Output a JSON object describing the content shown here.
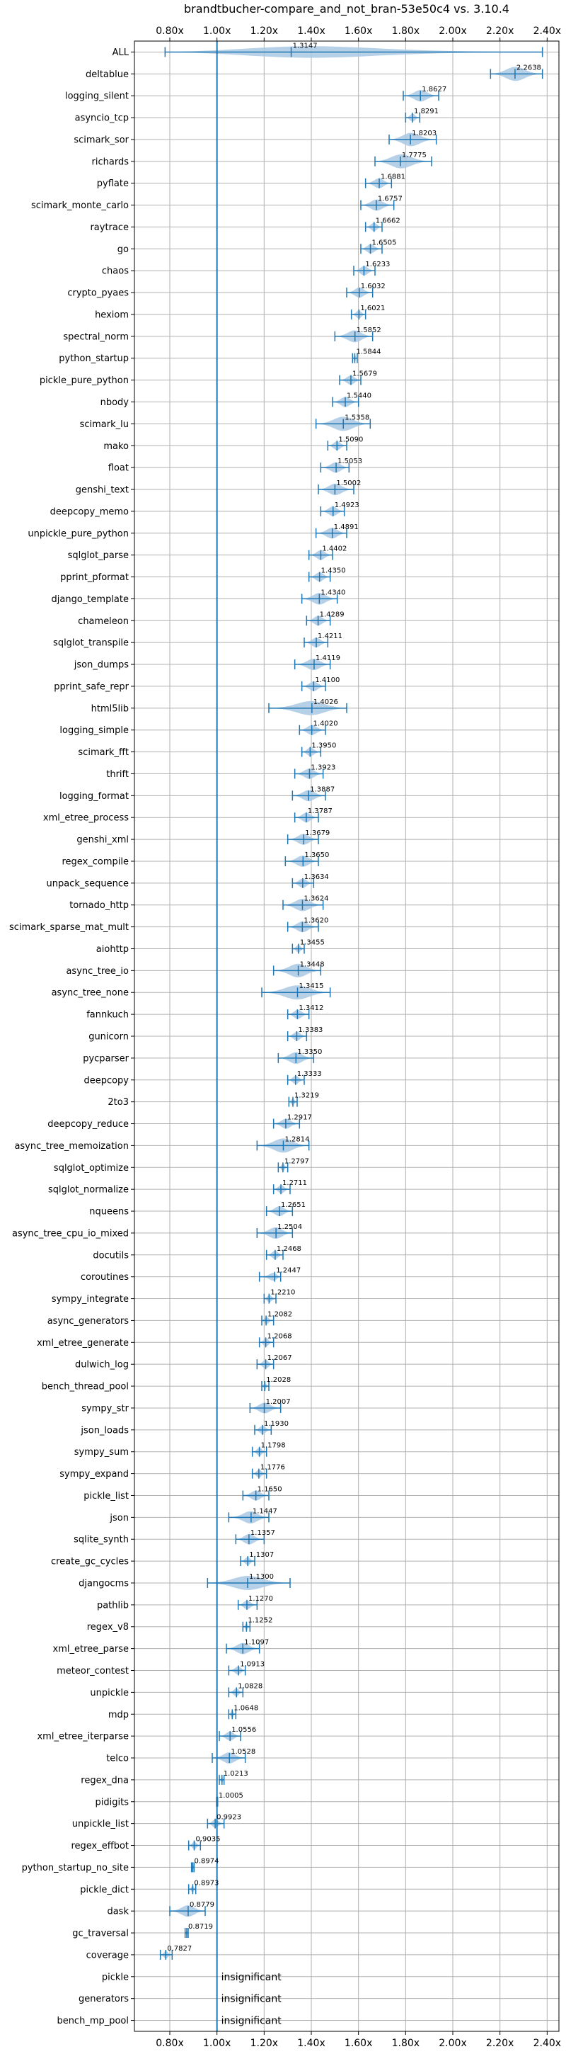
{
  "chart_data": {
    "type": "violin",
    "title": "brandtbucher-compare_and_not_bran-53e50c4 vs. 3.10.4",
    "xlabel": "",
    "ylabel": "",
    "xlim": [
      0.65,
      2.45
    ],
    "xticks": [
      0.8,
      1.0,
      1.2,
      1.4,
      1.6,
      1.8,
      2.0,
      2.2,
      2.4
    ],
    "xtick_labels": [
      "0.80x",
      "1.00x",
      "1.20x",
      "1.40x",
      "1.60x",
      "1.80x",
      "2.00x",
      "2.20x",
      "2.40x"
    ],
    "reference_line": 1.0,
    "grid": true,
    "colors": {
      "violin": "#a9c8e3",
      "line": "#1f77b4"
    },
    "insignificant_label": "insignificant",
    "benchmarks": [
      {
        "name": "ALL",
        "value": 1.3147,
        "value_label": "1.3147",
        "min": 0.78,
        "max": 2.38
      },
      {
        "name": "deltablue",
        "value": 2.2638,
        "value_label": "2.2638",
        "min": 2.16,
        "max": 2.38
      },
      {
        "name": "logging_silent",
        "value": 1.8627,
        "value_label": "1.8627",
        "min": 1.79,
        "max": 1.94
      },
      {
        "name": "asyncio_tcp",
        "value": 1.8291,
        "value_label": "1.8291",
        "min": 1.8,
        "max": 1.86
      },
      {
        "name": "scimark_sor",
        "value": 1.8203,
        "value_label": "1.8203",
        "min": 1.73,
        "max": 1.93
      },
      {
        "name": "richards",
        "value": 1.7775,
        "value_label": "1.7775",
        "min": 1.67,
        "max": 1.91
      },
      {
        "name": "pyflate",
        "value": 1.6881,
        "value_label": "1.6881",
        "min": 1.63,
        "max": 1.74
      },
      {
        "name": "scimark_monte_carlo",
        "value": 1.6757,
        "value_label": "1.6757",
        "min": 1.61,
        "max": 1.75
      },
      {
        "name": "raytrace",
        "value": 1.6662,
        "value_label": "1.6662",
        "min": 1.63,
        "max": 1.7
      },
      {
        "name": "go",
        "value": 1.6505,
        "value_label": "1.6505",
        "min": 1.61,
        "max": 1.7
      },
      {
        "name": "chaos",
        "value": 1.6233,
        "value_label": "1.6233",
        "min": 1.58,
        "max": 1.67
      },
      {
        "name": "crypto_pyaes",
        "value": 1.6032,
        "value_label": "1.6032",
        "min": 1.55,
        "max": 1.66
      },
      {
        "name": "hexiom",
        "value": 1.6021,
        "value_label": "1.6021",
        "min": 1.57,
        "max": 1.63
      },
      {
        "name": "spectral_norm",
        "value": 1.5852,
        "value_label": "1.5852",
        "min": 1.5,
        "max": 1.66
      },
      {
        "name": "python_startup",
        "value": 1.5844,
        "value_label": "1.5844",
        "min": 1.575,
        "max": 1.595
      },
      {
        "name": "pickle_pure_python",
        "value": 1.5679,
        "value_label": "1.5679",
        "min": 1.52,
        "max": 1.61
      },
      {
        "name": "nbody",
        "value": 1.544,
        "value_label": "1.5440",
        "min": 1.49,
        "max": 1.6
      },
      {
        "name": "scimark_lu",
        "value": 1.5358,
        "value_label": "1.5358",
        "min": 1.42,
        "max": 1.65
      },
      {
        "name": "mako",
        "value": 1.509,
        "value_label": "1.5090",
        "min": 1.47,
        "max": 1.55
      },
      {
        "name": "float",
        "value": 1.5053,
        "value_label": "1.5053",
        "min": 1.44,
        "max": 1.56
      },
      {
        "name": "genshi_text",
        "value": 1.5002,
        "value_label": "1.5002",
        "min": 1.43,
        "max": 1.58
      },
      {
        "name": "deepcopy_memo",
        "value": 1.4923,
        "value_label": "1.4923",
        "min": 1.44,
        "max": 1.54
      },
      {
        "name": "unpickle_pure_python",
        "value": 1.4891,
        "value_label": "1.4891",
        "min": 1.42,
        "max": 1.55
      },
      {
        "name": "sqlglot_parse",
        "value": 1.4402,
        "value_label": "1.4402",
        "min": 1.39,
        "max": 1.49
      },
      {
        "name": "pprint_pformat",
        "value": 1.435,
        "value_label": "1.4350",
        "min": 1.39,
        "max": 1.48
      },
      {
        "name": "django_template",
        "value": 1.434,
        "value_label": "1.4340",
        "min": 1.36,
        "max": 1.51
      },
      {
        "name": "chameleon",
        "value": 1.4289,
        "value_label": "1.4289",
        "min": 1.38,
        "max": 1.48
      },
      {
        "name": "sqlglot_transpile",
        "value": 1.4211,
        "value_label": "1.4211",
        "min": 1.37,
        "max": 1.47
      },
      {
        "name": "json_dumps",
        "value": 1.4119,
        "value_label": "1.4119",
        "min": 1.33,
        "max": 1.48
      },
      {
        "name": "pprint_safe_repr",
        "value": 1.41,
        "value_label": "1.4100",
        "min": 1.36,
        "max": 1.46
      },
      {
        "name": "html5lib",
        "value": 1.4026,
        "value_label": "1.4026",
        "min": 1.22,
        "max": 1.55
      },
      {
        "name": "logging_simple",
        "value": 1.402,
        "value_label": "1.4020",
        "min": 1.35,
        "max": 1.46
      },
      {
        "name": "scimark_fft",
        "value": 1.395,
        "value_label": "1.3950",
        "min": 1.36,
        "max": 1.44
      },
      {
        "name": "thrift",
        "value": 1.3923,
        "value_label": "1.3923",
        "min": 1.33,
        "max": 1.45
      },
      {
        "name": "logging_format",
        "value": 1.3887,
        "value_label": "1.3887",
        "min": 1.32,
        "max": 1.46
      },
      {
        "name": "xml_etree_process",
        "value": 1.3787,
        "value_label": "1.3787",
        "min": 1.33,
        "max": 1.43
      },
      {
        "name": "genshi_xml",
        "value": 1.3679,
        "value_label": "1.3679",
        "min": 1.3,
        "max": 1.43
      },
      {
        "name": "regex_compile",
        "value": 1.365,
        "value_label": "1.3650",
        "min": 1.29,
        "max": 1.43
      },
      {
        "name": "unpack_sequence",
        "value": 1.3634,
        "value_label": "1.3634",
        "min": 1.32,
        "max": 1.41
      },
      {
        "name": "tornado_http",
        "value": 1.3624,
        "value_label": "1.3624",
        "min": 1.28,
        "max": 1.45
      },
      {
        "name": "scimark_sparse_mat_mult",
        "value": 1.362,
        "value_label": "1.3620",
        "min": 1.3,
        "max": 1.43
      },
      {
        "name": "aiohttp",
        "value": 1.3455,
        "value_label": "1.3455",
        "min": 1.32,
        "max": 1.37
      },
      {
        "name": "async_tree_io",
        "value": 1.3448,
        "value_label": "1.3448",
        "min": 1.24,
        "max": 1.44
      },
      {
        "name": "async_tree_none",
        "value": 1.3415,
        "value_label": "1.3415",
        "min": 1.19,
        "max": 1.48
      },
      {
        "name": "fannkuch",
        "value": 1.3412,
        "value_label": "1.3412",
        "min": 1.3,
        "max": 1.39
      },
      {
        "name": "gunicorn",
        "value": 1.3383,
        "value_label": "1.3383",
        "min": 1.3,
        "max": 1.38
      },
      {
        "name": "pycparser",
        "value": 1.335,
        "value_label": "1.3350",
        "min": 1.26,
        "max": 1.41
      },
      {
        "name": "deepcopy",
        "value": 1.3333,
        "value_label": "1.3333",
        "min": 1.3,
        "max": 1.37
      },
      {
        "name": "2to3",
        "value": 1.3219,
        "value_label": "1.3219",
        "min": 1.305,
        "max": 1.34
      },
      {
        "name": "deepcopy_reduce",
        "value": 1.2917,
        "value_label": "1.2917",
        "min": 1.24,
        "max": 1.35
      },
      {
        "name": "async_tree_memoization",
        "value": 1.2814,
        "value_label": "1.2814",
        "min": 1.17,
        "max": 1.39
      },
      {
        "name": "sqlglot_optimize",
        "value": 1.2797,
        "value_label": "1.2797",
        "min": 1.26,
        "max": 1.3
      },
      {
        "name": "sqlglot_normalize",
        "value": 1.2711,
        "value_label": "1.2711",
        "min": 1.24,
        "max": 1.31
      },
      {
        "name": "nqueens",
        "value": 1.2651,
        "value_label": "1.2651",
        "min": 1.21,
        "max": 1.32
      },
      {
        "name": "async_tree_cpu_io_mixed",
        "value": 1.2504,
        "value_label": "1.2504",
        "min": 1.17,
        "max": 1.32
      },
      {
        "name": "docutils",
        "value": 1.2468,
        "value_label": "1.2468",
        "min": 1.21,
        "max": 1.28
      },
      {
        "name": "coroutines",
        "value": 1.2447,
        "value_label": "1.2447",
        "min": 1.18,
        "max": 1.27
      },
      {
        "name": "sympy_integrate",
        "value": 1.221,
        "value_label": "1.2210",
        "min": 1.2,
        "max": 1.25
      },
      {
        "name": "async_generators",
        "value": 1.2082,
        "value_label": "1.2082",
        "min": 1.19,
        "max": 1.24
      },
      {
        "name": "xml_etree_generate",
        "value": 1.2068,
        "value_label": "1.2068",
        "min": 1.18,
        "max": 1.24
      },
      {
        "name": "dulwich_log",
        "value": 1.2067,
        "value_label": "1.2067",
        "min": 1.17,
        "max": 1.24
      },
      {
        "name": "bench_thread_pool",
        "value": 1.2028,
        "value_label": "1.2028",
        "min": 1.19,
        "max": 1.22
      },
      {
        "name": "sympy_str",
        "value": 1.2007,
        "value_label": "1.2007",
        "min": 1.14,
        "max": 1.27
      },
      {
        "name": "json_loads",
        "value": 1.193,
        "value_label": "1.1930",
        "min": 1.16,
        "max": 1.23
      },
      {
        "name": "sympy_sum",
        "value": 1.1798,
        "value_label": "1.1798",
        "min": 1.15,
        "max": 1.21
      },
      {
        "name": "sympy_expand",
        "value": 1.1776,
        "value_label": "1.1776",
        "min": 1.15,
        "max": 1.21
      },
      {
        "name": "pickle_list",
        "value": 1.165,
        "value_label": "1.1650",
        "min": 1.11,
        "max": 1.22
      },
      {
        "name": "json",
        "value": 1.1447,
        "value_label": "1.1447",
        "min": 1.05,
        "max": 1.22
      },
      {
        "name": "sqlite_synth",
        "value": 1.1357,
        "value_label": "1.1357",
        "min": 1.08,
        "max": 1.2
      },
      {
        "name": "create_gc_cycles",
        "value": 1.1307,
        "value_label": "1.1307",
        "min": 1.1,
        "max": 1.16
      },
      {
        "name": "djangocms",
        "value": 1.13,
        "value_label": "1.1300",
        "min": 0.96,
        "max": 1.31
      },
      {
        "name": "pathlib",
        "value": 1.127,
        "value_label": "1.1270",
        "min": 1.09,
        "max": 1.17
      },
      {
        "name": "regex_v8",
        "value": 1.1252,
        "value_label": "1.1252",
        "min": 1.11,
        "max": 1.14
      },
      {
        "name": "xml_etree_parse",
        "value": 1.1097,
        "value_label": "1.1097",
        "min": 1.04,
        "max": 1.18
      },
      {
        "name": "meteor_contest",
        "value": 1.0913,
        "value_label": "1.0913",
        "min": 1.05,
        "max": 1.12
      },
      {
        "name": "unpickle",
        "value": 1.0828,
        "value_label": "1.0828",
        "min": 1.05,
        "max": 1.11
      },
      {
        "name": "mdp",
        "value": 1.0648,
        "value_label": "1.0648",
        "min": 1.05,
        "max": 1.08
      },
      {
        "name": "xml_etree_iterparse",
        "value": 1.0556,
        "value_label": "1.0556",
        "min": 1.01,
        "max": 1.1
      },
      {
        "name": "telco",
        "value": 1.0528,
        "value_label": "1.0528",
        "min": 0.98,
        "max": 1.12
      },
      {
        "name": "regex_dna",
        "value": 1.0213,
        "value_label": "1.0213",
        "min": 1.01,
        "max": 1.03
      },
      {
        "name": "pidigits",
        "value": 1.0005,
        "value_label": "1.0005",
        "min": 0.998,
        "max": 1.003
      },
      {
        "name": "unpickle_list",
        "value": 0.9923,
        "value_label": "0.9923",
        "min": 0.96,
        "max": 1.03
      },
      {
        "name": "regex_effbot",
        "value": 0.9035,
        "value_label": "0.9035",
        "min": 0.88,
        "max": 0.93
      },
      {
        "name": "python_startup_no_site",
        "value": 0.8974,
        "value_label": "0.8974",
        "min": 0.892,
        "max": 0.903
      },
      {
        "name": "pickle_dict",
        "value": 0.8973,
        "value_label": "0.8973",
        "min": 0.88,
        "max": 0.91
      },
      {
        "name": "dask",
        "value": 0.8779,
        "value_label": "0.8779",
        "min": 0.8,
        "max": 0.95
      },
      {
        "name": "gc_traversal",
        "value": 0.8719,
        "value_label": "0.8719",
        "min": 0.865,
        "max": 0.878
      },
      {
        "name": "coverage",
        "value": 0.7827,
        "value_label": "0.7827",
        "min": 0.76,
        "max": 0.81
      },
      {
        "name": "pickle",
        "value": null,
        "value_label": "",
        "insignificant": true
      },
      {
        "name": "generators",
        "value": null,
        "value_label": "",
        "insignificant": true
      },
      {
        "name": "bench_mp_pool",
        "value": null,
        "value_label": "",
        "insignificant": true
      }
    ]
  }
}
